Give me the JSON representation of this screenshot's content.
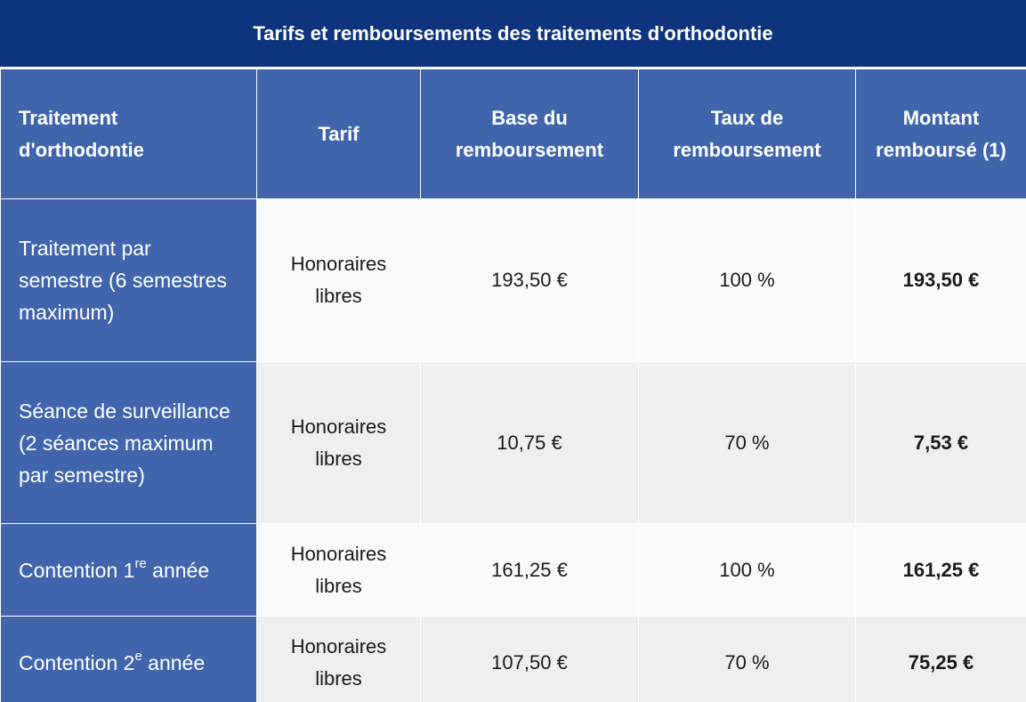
{
  "title": "Tarifs et remboursements des traitements d'orthodontie",
  "headers": {
    "treatment": "Traitement d'orthodontie",
    "tarif": "Tarif",
    "base": "Base du remboursement",
    "taux": "Taux de remboursement",
    "montant": "Montant remboursé (1)"
  },
  "rows": [
    {
      "label": "Traitement par semestre (6 semestres maximum)",
      "tarif": "Honoraires libres",
      "base": "193,50 €",
      "taux": "100 %",
      "montant": "193,50 €"
    },
    {
      "label": "Séance de surveillance (2 séances maximum par semestre)",
      "tarif": "Honoraires libres",
      "base": "10,75 €",
      "taux": "70 %",
      "montant": "7,53 €"
    },
    {
      "label_prefix": "Contention 1",
      "label_sup": "re",
      "label_suffix": " année",
      "tarif": "Honoraires libres",
      "base": "161,25 €",
      "taux": "100 %",
      "montant": "161,25 €"
    },
    {
      "label_prefix": "Contention 2",
      "label_sup": "e",
      "label_suffix": " année",
      "tarif": "Honoraires libres",
      "base": "107,50 €",
      "taux": "70 %",
      "montant": "75,25 €"
    }
  ],
  "colors": {
    "title_bg": "#0e347d",
    "header_bg": "#4065ad",
    "row_odd": "#fafafa",
    "row_even": "#efefef"
  }
}
